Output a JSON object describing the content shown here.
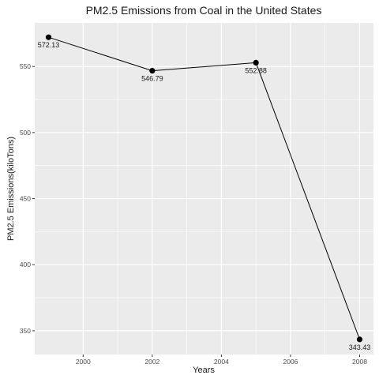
{
  "chart_data": {
    "type": "line",
    "title": "PM2.5 Emissions from Coal in the United States",
    "xlabel": "Years",
    "ylabel": "PM2.5 Emissions(kiloTons)",
    "x": [
      1999,
      2002,
      2005,
      2008
    ],
    "series": [
      {
        "values": [
          572.13,
          546.79,
          552.88,
          343.43
        ],
        "labels": [
          "572.13",
          "546.79",
          "552.88",
          "343.43"
        ]
      }
    ],
    "xlim": [
      1998.6,
      2008.4
    ],
    "ylim": [
      332,
      583
    ],
    "x_ticks": [
      2000,
      2002,
      2004,
      2006,
      2008
    ],
    "x_tick_labels": [
      "2000",
      "2002",
      "2004",
      "2006",
      "2008"
    ],
    "y_ticks": [
      350,
      400,
      450,
      500,
      550
    ],
    "y_tick_labels": [
      "350",
      "400",
      "450",
      "500",
      "550"
    ],
    "grid": true,
    "background_color": "#ebebeb",
    "grid_color": "#ffffff",
    "line_color": "#000000",
    "point_color": "#000000"
  }
}
